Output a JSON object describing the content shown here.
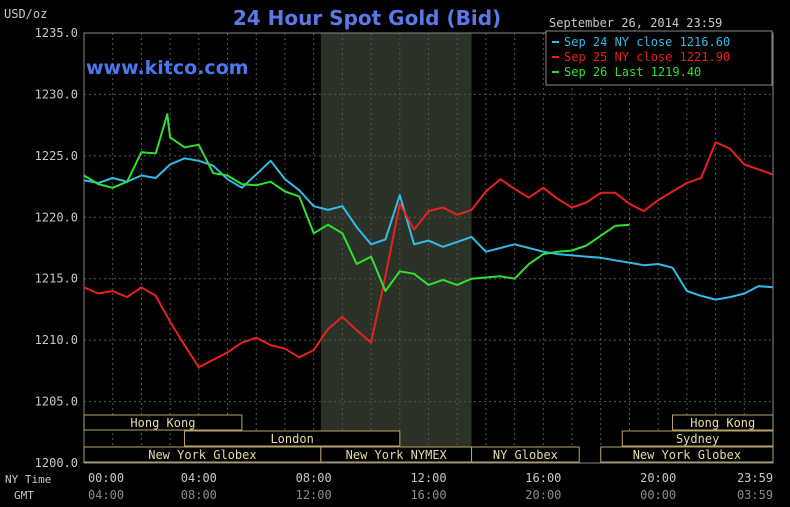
{
  "chart_data": {
    "type": "line",
    "title": "24 Hour Spot Gold (Bid)",
    "unit_label": "USD/oz",
    "watermark": "www.kitco.com",
    "date_label": "September 26, 2014 23:59",
    "ylim": [
      1200,
      1235
    ],
    "xlim_hours": [
      0,
      24
    ],
    "y_ticks": [
      "1200.0",
      "1205.0",
      "1210.0",
      "1215.0",
      "1220.0",
      "1225.0",
      "1230.0",
      "1235.0"
    ],
    "y_tick_values": [
      1200,
      1205,
      1210,
      1215,
      1220,
      1225,
      1230,
      1235
    ],
    "x_tick_hours": [
      0,
      4,
      8,
      12,
      16,
      20,
      24
    ],
    "x_ticks_ny": [
      "00:00",
      "04:00",
      "08:00",
      "12:00",
      "16:00",
      "20:00",
      "23:59"
    ],
    "x_ticks_gmt": [
      "04:00",
      "08:00",
      "12:00",
      "16:00",
      "20:00",
      "00:00",
      "03:59"
    ],
    "row_label_ny": "NY Time",
    "row_label_gmt": "GMT",
    "grid": true,
    "legend_placement": "top-right",
    "shaded_band_hours": [
      8.25,
      13.5
    ],
    "sessions": [
      {
        "label": "Hong Kong",
        "start": 0,
        "end": 5.5,
        "row": 0
      },
      {
        "label": "Hong Kong",
        "start": 20.5,
        "end": 24,
        "row": 0
      },
      {
        "label": "London",
        "start": 3.5,
        "end": 11.0,
        "row": 1
      },
      {
        "label": "Sydney",
        "start": 18.75,
        "end": 24,
        "row": 1
      },
      {
        "label": "New York Globex",
        "start": 0,
        "end": 8.25,
        "row": 2
      },
      {
        "label": "New York NYMEX",
        "start": 8.25,
        "end": 13.5,
        "row": 2
      },
      {
        "label": "NY Globex",
        "start": 13.5,
        "end": 17.25,
        "row": 2
      },
      {
        "label": "New York Globex",
        "start": 18.0,
        "end": 24,
        "row": 2
      }
    ],
    "colors": {
      "background": "#000000",
      "grid": "#555555",
      "title": "#5b79e8",
      "text": "#c8c8c8",
      "shade": "#2b3329",
      "session_border": "#b8a468",
      "session_text": "#e8d9a8"
    },
    "series": [
      {
        "name": "Sep 24 NY close 1216.60",
        "color": "#33bbe8",
        "x": [
          0,
          0.5,
          1,
          1.5,
          2,
          2.5,
          3,
          3.5,
          4,
          4.5,
          5,
          5.5,
          6,
          6.5,
          7,
          7.5,
          8,
          8.5,
          9,
          9.5,
          10,
          10.5,
          11,
          11.5,
          12,
          12.5,
          13,
          13.5,
          14,
          14.5,
          15,
          15.5,
          16,
          16.5,
          17,
          17.5,
          18,
          18.5,
          19,
          19.5,
          20,
          20.5,
          21,
          21.5,
          22,
          22.5,
          23,
          23.5,
          23.98
        ],
        "y": [
          1223,
          1222.8,
          1223.2,
          1222.9,
          1223.4,
          1223.2,
          1224.3,
          1224.8,
          1224.6,
          1224.2,
          1223.1,
          1222.4,
          1223.5,
          1224.6,
          1223.1,
          1222.2,
          1220.9,
          1220.6,
          1220.9,
          1219.2,
          1217.8,
          1218.2,
          1221.8,
          1217.8,
          1218.1,
          1217.6,
          1218.0,
          1218.4,
          1217.2,
          1217.5,
          1217.8,
          1217.5,
          1217.2,
          1217.0,
          1216.9,
          1216.8,
          1216.7,
          1216.5,
          1216.3,
          1216.1,
          1216.2,
          1215.9,
          1214.0,
          1213.6,
          1213.3,
          1213.5,
          1213.8,
          1214.4,
          1214.3
        ]
      },
      {
        "name": "Sep 25 NY close 1221.90",
        "color": "#e82020",
        "x": [
          0,
          0.5,
          1,
          1.5,
          2,
          2.5,
          3,
          3.5,
          4,
          4.5,
          5,
          5.5,
          6,
          6.5,
          7,
          7.5,
          8,
          8.5,
          9,
          9.5,
          10,
          10.5,
          11,
          11.5,
          12,
          12.5,
          13,
          13.5,
          14,
          14.5,
          15,
          15.5,
          16,
          16.5,
          17,
          17.5,
          18,
          18.5,
          19,
          19.5,
          20,
          20.5,
          21,
          21.5,
          22,
          22.5,
          23,
          23.5,
          23.98
        ],
        "y": [
          1214.3,
          1213.8,
          1214.0,
          1213.5,
          1214.3,
          1213.6,
          1211.5,
          1209.6,
          1207.8,
          1208.4,
          1209.0,
          1209.8,
          1210.2,
          1209.6,
          1209.3,
          1208.6,
          1209.2,
          1210.9,
          1211.9,
          1210.8,
          1209.8,
          1215.2,
          1221.1,
          1219.0,
          1220.5,
          1220.8,
          1220.2,
          1220.6,
          1222.1,
          1223.1,
          1222.3,
          1221.6,
          1222.4,
          1221.5,
          1220.8,
          1221.2,
          1222.0,
          1222.0,
          1221.1,
          1220.5,
          1221.4,
          1222.1,
          1222.8,
          1223.2,
          1226.1,
          1225.6,
          1224.3,
          1223.9,
          1223.5
        ]
      },
      {
        "name": "Sep 26 Last 1219.40",
        "color": "#30e030",
        "x": [
          0,
          0.5,
          1,
          1.5,
          2,
          2.5,
          2.9,
          3,
          3.5,
          4,
          4.5,
          5,
          5.5,
          6,
          6.5,
          7,
          7.5,
          8,
          8.5,
          9,
          9.5,
          10,
          10.5,
          11,
          11.5,
          12,
          12.5,
          13,
          13.5,
          14,
          14.5,
          15,
          15.5,
          16,
          16.5,
          17,
          17.5,
          18,
          18.5,
          19
        ],
        "y": [
          1223.4,
          1222.7,
          1222.4,
          1222.9,
          1225.3,
          1225.2,
          1228.4,
          1226.5,
          1225.7,
          1225.9,
          1223.6,
          1223.4,
          1222.7,
          1222.6,
          1222.9,
          1222.1,
          1221.7,
          1218.7,
          1219.4,
          1218.7,
          1216.2,
          1216.8,
          1214.0,
          1215.6,
          1215.4,
          1214.5,
          1214.9,
          1214.5,
          1215.0,
          1215.1,
          1215.2,
          1215.0,
          1216.2,
          1217.0,
          1217.2,
          1217.3,
          1217.7,
          1218.5,
          1219.3,
          1219.4
        ]
      }
    ]
  }
}
